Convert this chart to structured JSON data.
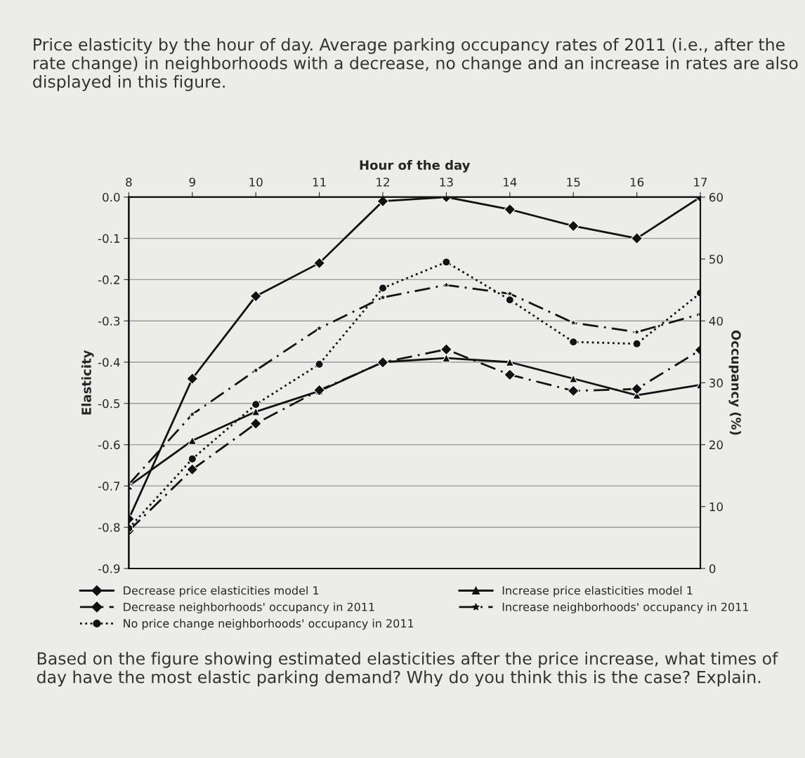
{
  "chart_data": {
    "type": "line",
    "title": "Price elasticity by the hour of day. Average parking occupancy rates of 2011 (i.e., after the rate change) in neighborhoods with a decrease, no change and an increase in rates are also displayed in this figure.",
    "xlabel": "Hour of the day",
    "ylabel": "Elasticity",
    "y2label": "Occupancy (%)",
    "x": [
      8,
      9,
      10,
      11,
      12,
      13,
      14,
      15,
      16,
      17
    ],
    "xlim": [
      8,
      17
    ],
    "xticks": [
      8,
      9,
      10,
      11,
      12,
      13,
      14,
      15,
      16,
      17
    ],
    "ylim": [
      -0.9,
      0.0
    ],
    "yticks": [
      {
        "value": 0.0,
        "label": "0.0"
      },
      {
        "value": -0.1,
        "label": "-0.1"
      },
      {
        "value": -0.2,
        "label": "-0.2"
      },
      {
        "value": -0.3,
        "label": "-0.3"
      },
      {
        "value": -0.4,
        "label": "-0.4"
      },
      {
        "value": -0.5,
        "label": "-0.5"
      },
      {
        "value": -0.6,
        "label": "-0.6"
      },
      {
        "value": -0.7,
        "label": "-0.7"
      },
      {
        "value": -0.8,
        "label": "-0.8"
      },
      {
        "value": -0.9,
        "label": "-0.9"
      }
    ],
    "y2lim": [
      0,
      60
    ],
    "y2ticks": [
      0,
      10,
      20,
      30,
      40,
      50,
      60
    ],
    "grid": "y",
    "legend": "bottom",
    "series": [
      {
        "name": "Decrease price elasticities model 1",
        "color": "#111111",
        "marker": "diamond",
        "line_style": "solid",
        "values": [
          -0.78,
          -0.44,
          -0.24,
          -0.16,
          -0.01,
          0.0,
          -0.03,
          -0.07,
          -0.1,
          0.0
        ]
      },
      {
        "name": "Decrease neighborhoods' occupancy in 2011",
        "color": "#111111",
        "marker": "diamond",
        "line_style": "dashed",
        "axis": "y2",
        "values": [
          6.1,
          16.0,
          23.4,
          28.8,
          33.3,
          35.4,
          31.3,
          28.7,
          29.0,
          35.3
        ]
      },
      {
        "name": "No price change neighborhoods' occupancy in 2011",
        "color": "#111111",
        "marker": "circle",
        "line_style": "dotted",
        "axis": "y2",
        "values": [
          6.5,
          17.7,
          26.5,
          33.0,
          45.3,
          49.5,
          43.4,
          36.6,
          36.3,
          44.5
        ]
      },
      {
        "name": "Increase price elasticities model 1",
        "color": "#111111",
        "marker": "triangle",
        "line_style": "solid",
        "values": [
          -0.7,
          -0.59,
          -0.52,
          -0.47,
          -0.4,
          -0.39,
          -0.4,
          -0.44,
          -0.48,
          -0.455
        ]
      },
      {
        "name": "Increase neighborhoods' occupancy in 2011",
        "color": "#111111",
        "marker": "star",
        "line_style": "dashed",
        "axis": "y2",
        "values": [
          13.6,
          24.9,
          32.0,
          38.8,
          43.8,
          45.8,
          44.4,
          39.7,
          38.2,
          41.1
        ]
      }
    ],
    "annotations": [
      "Based on the figure showing estimated elasticities after the price increase, what times of day have the most elastic parking demand? Why do you think this is the case? Explain."
    ]
  }
}
